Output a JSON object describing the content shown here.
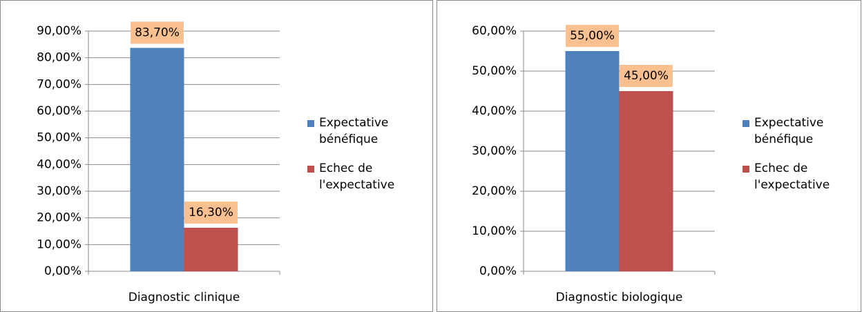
{
  "chart_data": [
    {
      "type": "bar",
      "categories": [
        "Diagnostic clinique"
      ],
      "series": [
        {
          "name": "Expectative bénéfique",
          "color": "#4f81bd",
          "values": [
            83.7
          ],
          "value_labels": [
            "83,70%"
          ]
        },
        {
          "name": "Echec de l'expectative",
          "color": "#c0504d",
          "values": [
            16.3
          ],
          "value_labels": [
            "16,30%"
          ]
        }
      ],
      "ylim": [
        0,
        90
      ],
      "yticks": [
        {
          "value": 0,
          "label": "0,00%"
        },
        {
          "value": 10,
          "label": "10,00%"
        },
        {
          "value": 20,
          "label": "20,00%"
        },
        {
          "value": 30,
          "label": "30,00%"
        },
        {
          "value": 40,
          "label": "40,00%"
        },
        {
          "value": 50,
          "label": "50,00%"
        },
        {
          "value": 60,
          "label": "60,00%"
        },
        {
          "value": 70,
          "label": "70,00%"
        },
        {
          "value": 80,
          "label": "80,00%"
        },
        {
          "value": 90,
          "label": "90,00%"
        }
      ],
      "grid": true,
      "legend": "right"
    },
    {
      "type": "bar",
      "categories": [
        "Diagnostic biologique"
      ],
      "series": [
        {
          "name": "Expectative bénéfique",
          "color": "#4f81bd",
          "values": [
            55
          ],
          "value_labels": [
            "55,00%"
          ]
        },
        {
          "name": "Echec de l'expectative",
          "color": "#c0504d",
          "values": [
            45
          ],
          "value_labels": [
            "45,00%"
          ]
        }
      ],
      "ylim": [
        0,
        60
      ],
      "yticks": [
        {
          "value": 0,
          "label": "0,00%"
        },
        {
          "value": 10,
          "label": "10,00%"
        },
        {
          "value": 20,
          "label": "20,00%"
        },
        {
          "value": 30,
          "label": "30,00%"
        },
        {
          "value": 40,
          "label": "40,00%"
        },
        {
          "value": 50,
          "label": "50,00%"
        },
        {
          "value": 60,
          "label": "60,00%"
        }
      ],
      "grid": true,
      "legend": "right"
    }
  ]
}
